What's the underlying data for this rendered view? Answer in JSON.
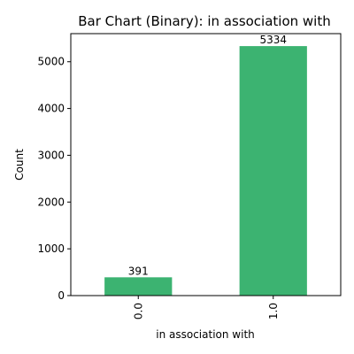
{
  "chart_data": {
    "type": "bar",
    "title": "Bar Chart (Binary): in association with",
    "xlabel": "in association with",
    "ylabel": "Count",
    "categories": [
      "0.0",
      "1.0"
    ],
    "values": [
      391,
      5334
    ],
    "data_labels": [
      "391",
      "5334"
    ],
    "ylim": [
      0,
      5600.7
    ],
    "yticks": [
      0,
      1000,
      2000,
      3000,
      4000,
      5000
    ],
    "ytick_labels": [
      "0",
      "1000",
      "2000",
      "3000",
      "4000",
      "5000"
    ],
    "grid": false,
    "legend": "none",
    "bar_color": "#3cb371"
  }
}
